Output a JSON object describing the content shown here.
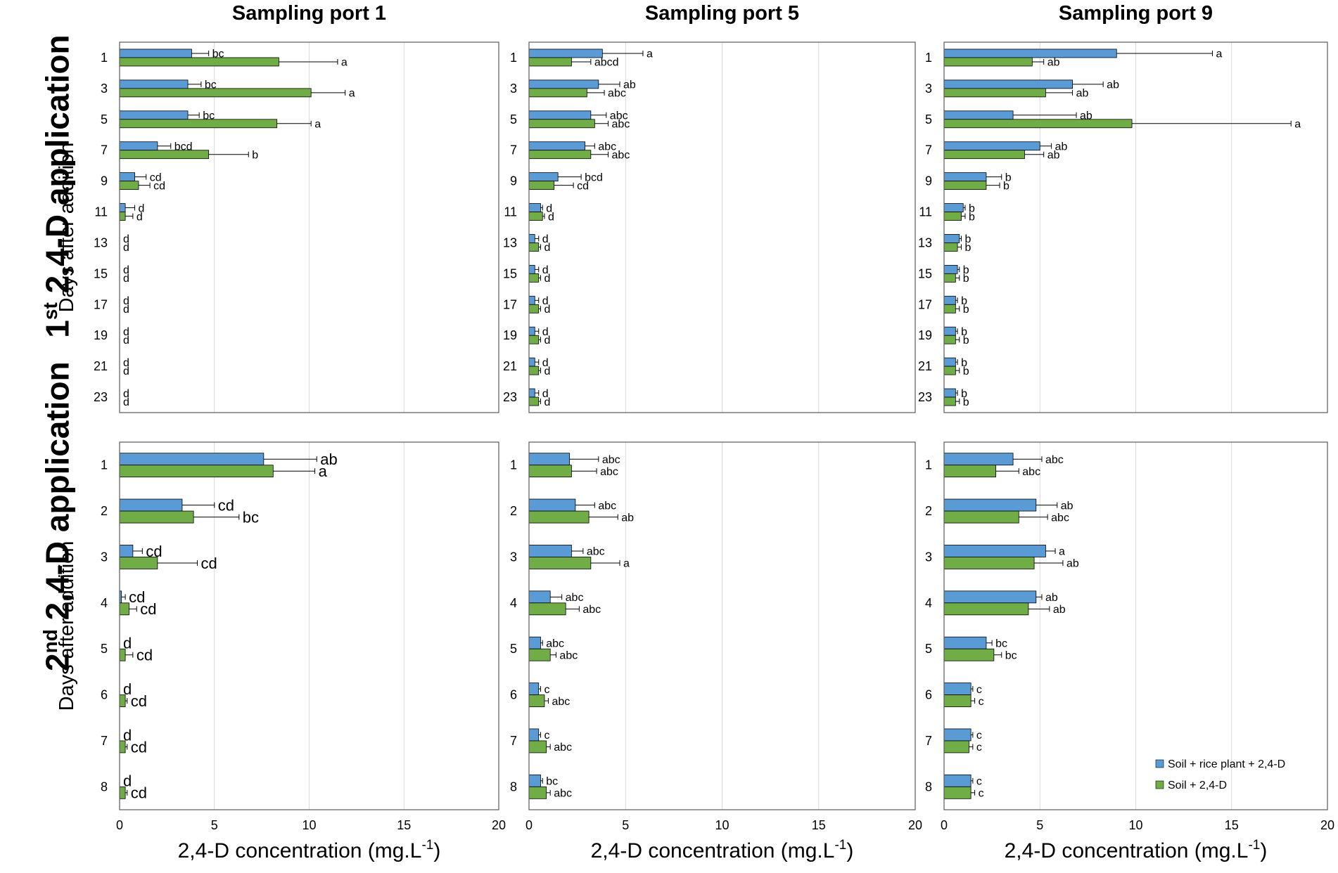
{
  "row_titles": [
    {
      "ordinal": "1",
      "suffix": "st",
      "text": " 2,4-D application"
    },
    {
      "ordinal": "2",
      "suffix": "nd",
      "text": " 2,4-D application"
    }
  ],
  "y_axis_label": "Days after addition",
  "x_axis_label": "2,4-D concentration (mg.L",
  "x_axis_unit_sup": "-1",
  "x_axis_label_close": ")",
  "legend": [
    {
      "label": "Soil + rice plant + 2,4-D",
      "color": "#5b9bd5"
    },
    {
      "label": "Soil + 2,4-D",
      "color": "#70ad47"
    }
  ],
  "colors": {
    "series_blue": "#5b9bd5",
    "series_green": "#70ad47",
    "grid": "#d9d9d9",
    "border": "#595959"
  },
  "chart_data": [
    {
      "type": "bar",
      "orientation": "horizontal",
      "row": 0,
      "col": 0,
      "title": "Sampling port 1",
      "xlim": [
        0,
        20
      ],
      "xticks": [
        0,
        5,
        10,
        15,
        20
      ],
      "categories": [
        "1",
        "3",
        "5",
        "7",
        "9",
        "11",
        "13",
        "15",
        "17",
        "19",
        "21",
        "23"
      ],
      "series": [
        {
          "name": "Soil + rice plant + 2,4-D",
          "values": [
            3.8,
            3.6,
            3.6,
            2.0,
            0.8,
            0.3,
            0,
            0,
            0,
            0,
            0,
            0
          ],
          "errors": [
            0.9,
            0.7,
            0.6,
            0.7,
            0.6,
            0.5,
            0,
            0,
            0,
            0,
            0,
            0
          ],
          "letters": [
            "bc",
            "bc",
            "bc",
            "bcd",
            "cd",
            "d",
            "d",
            "d",
            "d",
            "d",
            "d",
            "d"
          ]
        },
        {
          "name": "Soil + 2,4-D",
          "values": [
            8.4,
            10.1,
            8.3,
            4.7,
            1.0,
            0.3,
            0,
            0,
            0,
            0,
            0,
            0
          ],
          "errors": [
            3.1,
            1.8,
            1.8,
            2.1,
            0.6,
            0.4,
            0,
            0,
            0,
            0,
            0,
            0
          ],
          "letters": [
            "a",
            "a",
            "a",
            "b",
            "cd",
            "d",
            "d",
            "d",
            "d",
            "d",
            "d",
            "d"
          ]
        }
      ]
    },
    {
      "type": "bar",
      "orientation": "horizontal",
      "row": 0,
      "col": 1,
      "title": "Sampling port 5",
      "xlim": [
        0,
        20
      ],
      "xticks": [
        0,
        5,
        10,
        15,
        20
      ],
      "categories": [
        "1",
        "3",
        "5",
        "7",
        "9",
        "11",
        "13",
        "15",
        "17",
        "19",
        "21",
        "23"
      ],
      "series": [
        {
          "name": "Soil + rice plant + 2,4-D",
          "values": [
            3.8,
            3.6,
            3.2,
            2.9,
            1.5,
            0.6,
            0.3,
            0.3,
            0.3,
            0.3,
            0.3,
            0.3
          ],
          "errors": [
            2.1,
            1.1,
            0.8,
            0.5,
            1.2,
            0.1,
            0.2,
            0.2,
            0.2,
            0.2,
            0.2,
            0.2
          ],
          "letters": [
            "a",
            "ab",
            "abc",
            "abc",
            "bcd",
            "d",
            "d",
            "d",
            "d",
            "d",
            "d",
            "d"
          ]
        },
        {
          "name": "Soil + 2,4-D",
          "values": [
            2.2,
            3.0,
            3.4,
            3.2,
            1.3,
            0.7,
            0.5,
            0.5,
            0.5,
            0.5,
            0.5,
            0.5
          ],
          "errors": [
            1.0,
            0.9,
            0.7,
            0.9,
            1.0,
            0.1,
            0.1,
            0.1,
            0.1,
            0.1,
            0.1,
            0.1
          ],
          "letters": [
            "abcd",
            "abc",
            "abc",
            "abc",
            "cd",
            "d",
            "d",
            "d",
            "d",
            "d",
            "d",
            "d"
          ]
        }
      ]
    },
    {
      "type": "bar",
      "orientation": "horizontal",
      "row": 0,
      "col": 2,
      "title": "Sampling port 9",
      "xlim": [
        0,
        20
      ],
      "xticks": [
        0,
        5,
        10,
        15,
        20
      ],
      "categories": [
        "1",
        "3",
        "5",
        "7",
        "9",
        "11",
        "13",
        "15",
        "17",
        "19",
        "21",
        "23"
      ],
      "series": [
        {
          "name": "Soil + rice plant + 2,4-D",
          "values": [
            9.0,
            6.7,
            3.6,
            5.0,
            2.2,
            1.0,
            0.8,
            0.7,
            0.6,
            0.6,
            0.6,
            0.6
          ],
          "errors": [
            5.0,
            1.6,
            3.3,
            0.6,
            0.8,
            0.1,
            0.1,
            0.1,
            0.1,
            0.1,
            0.1,
            0.1
          ],
          "letters": [
            "a",
            "ab",
            "ab",
            "ab",
            "b",
            "b",
            "b",
            "b",
            "b",
            "b",
            "b",
            "b"
          ]
        },
        {
          "name": "Soil + 2,4-D",
          "values": [
            4.6,
            5.3,
            9.8,
            4.2,
            2.2,
            0.9,
            0.7,
            0.6,
            0.6,
            0.6,
            0.6,
            0.6
          ],
          "errors": [
            0.6,
            1.4,
            8.3,
            1.0,
            0.7,
            0.2,
            0.2,
            0.2,
            0.2,
            0.2,
            0.2,
            0.2
          ],
          "letters": [
            "ab",
            "ab",
            "a",
            "ab",
            "b",
            "b",
            "b",
            "b",
            "b",
            "b",
            "b",
            "b"
          ]
        }
      ]
    },
    {
      "type": "bar",
      "orientation": "horizontal",
      "row": 1,
      "col": 0,
      "title": "",
      "xlim": [
        0,
        20
      ],
      "xticks": [
        0,
        5,
        10,
        15,
        20
      ],
      "categories": [
        "1",
        "2",
        "3",
        "4",
        "5",
        "6",
        "7",
        "8"
      ],
      "series": [
        {
          "name": "Soil + rice plant + 2,4-D",
          "values": [
            7.6,
            3.3,
            0.7,
            0.1,
            0,
            0,
            0,
            0
          ],
          "errors": [
            2.8,
            1.7,
            0.5,
            0.2,
            0,
            0,
            0,
            0
          ],
          "letters": [
            "ab",
            "cd",
            "cd",
            "cd",
            "d",
            "d",
            "d",
            "d"
          ]
        },
        {
          "name": "Soil + 2,4-D",
          "values": [
            8.1,
            3.9,
            2.0,
            0.5,
            0.3,
            0.3,
            0.3,
            0.3
          ],
          "errors": [
            2.2,
            2.4,
            2.1,
            0.4,
            0.4,
            0.1,
            0.1,
            0.1
          ],
          "letters": [
            "a",
            "bc",
            "cd",
            "cd",
            "cd",
            "cd",
            "cd",
            "cd"
          ]
        }
      ]
    },
    {
      "type": "bar",
      "orientation": "horizontal",
      "row": 1,
      "col": 1,
      "title": "",
      "xlim": [
        0,
        20
      ],
      "xticks": [
        0,
        5,
        10,
        15,
        20
      ],
      "categories": [
        "1",
        "2",
        "3",
        "4",
        "5",
        "6",
        "7",
        "8"
      ],
      "series": [
        {
          "name": "Soil + rice plant + 2,4-D",
          "values": [
            2.1,
            2.4,
            2.2,
            1.1,
            0.6,
            0.5,
            0.5,
            0.6
          ],
          "errors": [
            1.5,
            1.0,
            0.6,
            0.6,
            0.1,
            0.1,
            0.1,
            0.1
          ],
          "letters": [
            "abc",
            "abc",
            "abc",
            "abc",
            "abc",
            "c",
            "c",
            "bc"
          ]
        },
        {
          "name": "Soil + 2,4-D",
          "values": [
            2.2,
            3.1,
            3.2,
            1.9,
            1.1,
            0.8,
            0.9,
            0.9
          ],
          "errors": [
            1.3,
            1.5,
            1.5,
            0.7,
            0.3,
            0.2,
            0.2,
            0.2
          ],
          "letters": [
            "abc",
            "ab",
            "a",
            "abc",
            "abc",
            "abc",
            "abc",
            "abc"
          ]
        }
      ]
    },
    {
      "type": "bar",
      "orientation": "horizontal",
      "row": 1,
      "col": 2,
      "title": "",
      "xlim": [
        0,
        20
      ],
      "xticks": [
        0,
        5,
        10,
        15,
        20
      ],
      "categories": [
        "1",
        "2",
        "3",
        "4",
        "5",
        "6",
        "7",
        "8"
      ],
      "series": [
        {
          "name": "Soil + rice plant + 2,4-D",
          "values": [
            3.6,
            4.8,
            5.3,
            4.8,
            2.2,
            1.4,
            1.4,
            1.4
          ],
          "errors": [
            1.5,
            1.1,
            0.5,
            0.3,
            0.3,
            0.1,
            0.1,
            0.1
          ],
          "letters": [
            "abc",
            "ab",
            "a",
            "ab",
            "bc",
            "c",
            "c",
            "c"
          ]
        },
        {
          "name": "Soil + 2,4-D",
          "values": [
            2.7,
            3.9,
            4.7,
            4.4,
            2.6,
            1.4,
            1.3,
            1.4
          ],
          "errors": [
            1.2,
            1.5,
            1.5,
            1.1,
            0.4,
            0.2,
            0.2,
            0.2
          ],
          "letters": [
            "abc",
            "abc",
            "ab",
            "ab",
            "bc",
            "c",
            "c",
            "c"
          ]
        }
      ],
      "legend": true
    }
  ]
}
